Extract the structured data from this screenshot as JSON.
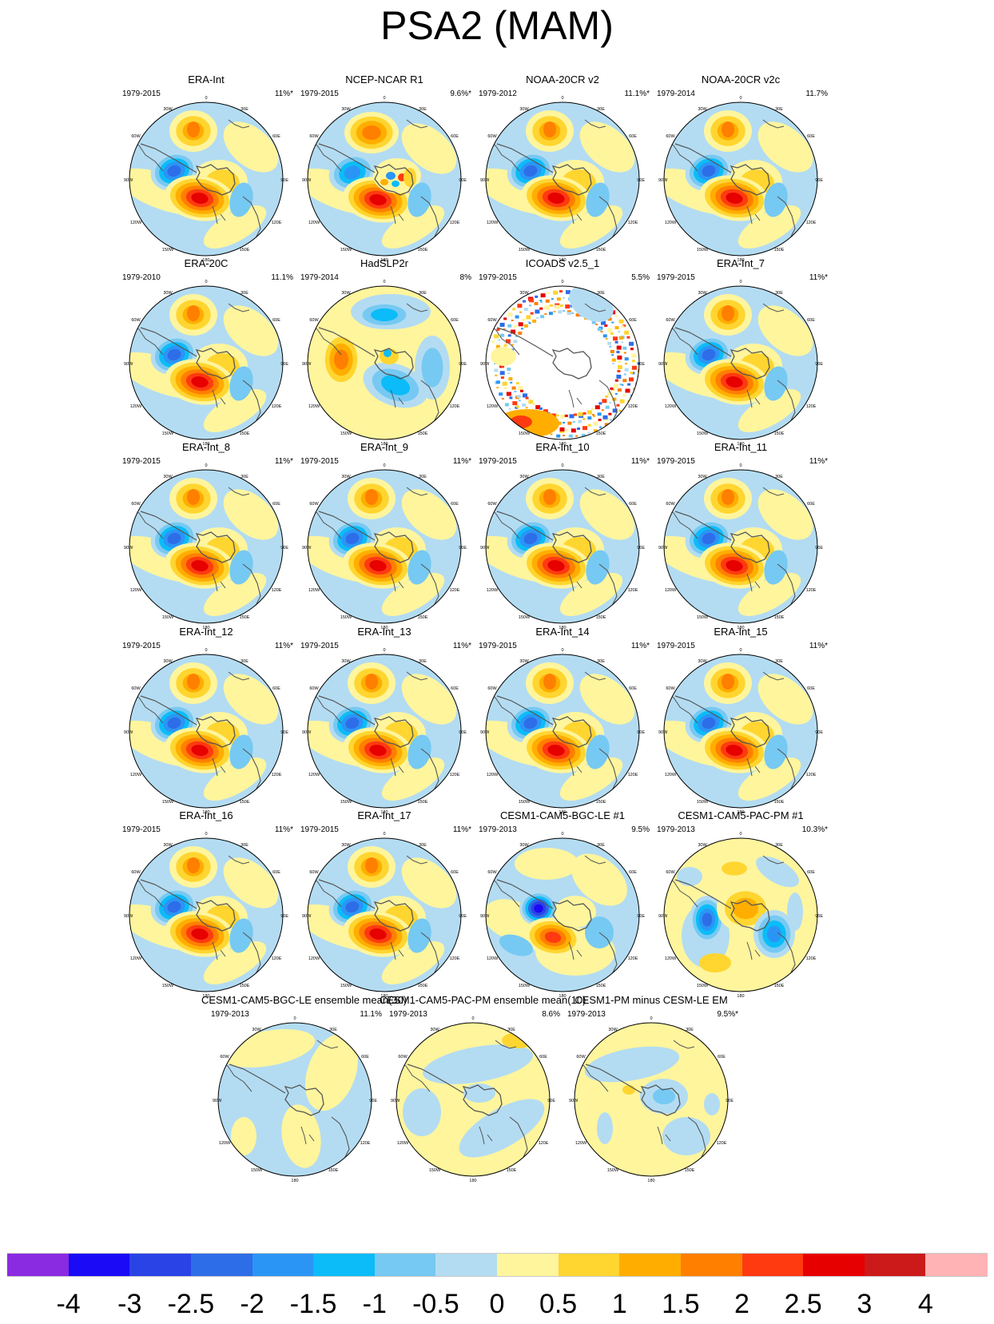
{
  "title": "PSA2 (MAM)",
  "panels": [
    {
      "title": "ERA-Int",
      "years": "1979-2015",
      "pct": "11%*",
      "style": "std"
    },
    {
      "title": "NCEP-NCAR R1",
      "years": "1979-2015",
      "pct": "9.6%*",
      "style": "ncep"
    },
    {
      "title": "NOAA-20CR v2",
      "years": "1979-2012",
      "pct": "11.1%*",
      "style": "std"
    },
    {
      "title": "NOAA-20CR v2c",
      "years": "1979-2014",
      "pct": "11.7%",
      "style": "std"
    },
    {
      "title": "ERA-20C",
      "years": "1979-2010",
      "pct": "11.1%",
      "style": "std"
    },
    {
      "title": "HadSLP2r",
      "years": "1979-2014",
      "pct": "8%",
      "style": "had"
    },
    {
      "title": "ICOADS v2.5_1",
      "years": "1979-2015",
      "pct": "5.5%",
      "style": "icoads"
    },
    {
      "title": "ERA-Int_7",
      "years": "1979-2015",
      "pct": "11%*",
      "style": "std"
    },
    {
      "title": "ERA-Int_8",
      "years": "1979-2015",
      "pct": "11%*",
      "style": "std"
    },
    {
      "title": "ERA-Int_9",
      "years": "1979-2015",
      "pct": "11%*",
      "style": "std"
    },
    {
      "title": "ERA-Int_10",
      "years": "1979-2015",
      "pct": "11%*",
      "style": "std"
    },
    {
      "title": "ERA-Int_11",
      "years": "1979-2015",
      "pct": "11%*",
      "style": "std"
    },
    {
      "title": "ERA-Int_12",
      "years": "1979-2015",
      "pct": "11%*",
      "style": "std"
    },
    {
      "title": "ERA-Int_13",
      "years": "1979-2015",
      "pct": "11%*",
      "style": "std"
    },
    {
      "title": "ERA-Int_14",
      "years": "1979-2015",
      "pct": "11%*",
      "style": "std"
    },
    {
      "title": "ERA-Int_15",
      "years": "1979-2015",
      "pct": "11%*",
      "style": "std"
    },
    {
      "title": "ERA-Int_16",
      "years": "1979-2015",
      "pct": "11%*",
      "style": "std"
    },
    {
      "title": "ERA-Int_17",
      "years": "1979-2015",
      "pct": "11%*",
      "style": "std"
    },
    {
      "title": "CESM1-CAM5-BGC-LE #1",
      "years": "1979-2013",
      "pct": "9.5%",
      "style": "bgc"
    },
    {
      "title": "CESM1-CAM5-PAC-PM #1",
      "years": "1979-2013",
      "pct": "10.3%*",
      "style": "pac"
    },
    {
      "title": "CESM1-CAM5-BGC-LE ensemble mean(30)",
      "years": "1979-2013",
      "pct": "11.1%",
      "style": "em1"
    },
    {
      "title": "CESM1-CAM5-PAC-PM ensemble mean(10)",
      "years": "1979-2013",
      "pct": "8.6%",
      "style": "em2"
    },
    {
      "title": "CESM1-PM minus CESM-LE EM",
      "years": "1979-2013",
      "pct": "9.5%*",
      "style": "em3"
    }
  ],
  "map_labels": {
    "top": "0",
    "upper_left": "30W",
    "upper_right": "30E",
    "left_upper": "60W",
    "right_upper": "60E",
    "left_mid": "90W",
    "right_mid": "90E",
    "left_lower": "120W",
    "right_lower": "120E",
    "lower_left": "150W",
    "lower_right": "150E",
    "bottom": "180"
  },
  "colorbar": {
    "colors": [
      "#8a2be2",
      "#1a0af5",
      "#2a43e6",
      "#2e6de8",
      "#2b95f5",
      "#0bbcf8",
      "#76c9f2",
      "#b3dcf2",
      "#fff59d",
      "#ffd530",
      "#ffae00",
      "#ff7f00",
      "#ff3a10",
      "#e60000",
      "#cc1a1a",
      "#ffb3b5"
    ],
    "labels": [
      "-4",
      "-3",
      "-2.5",
      "-2",
      "-1.5",
      "-1",
      "-0.5",
      "0",
      "0.5",
      "1",
      "1.5",
      "2",
      "2.5",
      "3",
      "4"
    ]
  }
}
